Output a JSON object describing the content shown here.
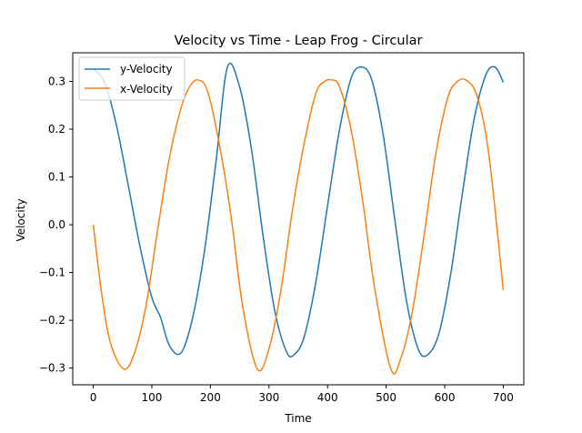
{
  "chart_data": {
    "type": "line",
    "title": "Velocity vs Time - Leap Frog - Circular",
    "xlabel": "Time",
    "ylabel": "Velocity",
    "xlim": [
      -35,
      735
    ],
    "ylim": [
      -0.335,
      0.36
    ],
    "xticks": [
      0,
      100,
      200,
      300,
      400,
      500,
      600,
      700
    ],
    "xtick_labels": [
      "0",
      "100",
      "200",
      "300",
      "400",
      "500",
      "600",
      "700"
    ],
    "yticks": [
      -0.3,
      -0.2,
      -0.1,
      0.0,
      0.1,
      0.2,
      0.3
    ],
    "ytick_labels": [
      "−0.3",
      "−0.2",
      "−0.1",
      "0.0",
      "0.1",
      "0.2",
      "0.3"
    ],
    "grid": false,
    "legend": "top-left",
    "series": [
      {
        "name": "y-Velocity",
        "color": "#1f77b4",
        "x": [
          0,
          20,
          40,
          60,
          80,
          100,
          115,
          130,
          150,
          170,
          190,
          210,
          229,
          250,
          270,
          290,
          310,
          330,
          343,
          360,
          380,
          400,
          420,
          440,
          457,
          475,
          495,
          515,
          535,
          555,
          571,
          590,
          610,
          630,
          650,
          670,
          686,
          700
        ],
        "values": [
          0.327,
          0.296,
          0.206,
          0.081,
          -0.047,
          -0.152,
          -0.194,
          -0.253,
          -0.268,
          -0.193,
          -0.054,
          0.137,
          0.33,
          0.288,
          0.159,
          -0.024,
          -0.181,
          -0.266,
          -0.272,
          -0.235,
          -0.12,
          0.04,
          0.196,
          0.306,
          0.33,
          0.305,
          0.188,
          0.009,
          -0.161,
          -0.261,
          -0.272,
          -0.228,
          -0.105,
          0.064,
          0.22,
          0.313,
          0.33,
          0.298
        ]
      },
      {
        "name": "x-Velocity",
        "color": "#ff7f0e",
        "x": [
          0,
          15,
          30,
          52,
          70,
          90,
          110,
          130,
          150,
          165,
          179,
          195,
          215,
          235,
          255,
          280,
          300,
          320,
          340,
          360,
          380,
          395,
          407,
          420,
          440,
          460,
          480,
          508,
          525,
          545,
          565,
          585,
          605,
          620,
          636,
          655,
          675,
          700
        ],
        "values": [
          0.0,
          -0.15,
          -0.25,
          -0.302,
          -0.27,
          -0.17,
          -0.01,
          0.14,
          0.245,
          0.29,
          0.303,
          0.28,
          0.17,
          0.02,
          -0.17,
          -0.302,
          -0.26,
          -0.14,
          0.03,
          0.17,
          0.275,
          0.3,
          0.303,
          0.29,
          0.2,
          0.05,
          -0.13,
          -0.302,
          -0.28,
          -0.18,
          -0.02,
          0.15,
          0.265,
          0.298,
          0.303,
          0.27,
          0.15,
          -0.137
        ]
      }
    ]
  }
}
